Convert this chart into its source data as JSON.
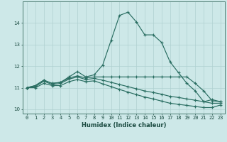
{
  "xlabel": "Humidex (Indice chaleur)",
  "ylabel": "",
  "bg_color": "#cde8e8",
  "line_color": "#2a6e62",
  "grid_color": "#afd0d0",
  "xlim": [
    -0.5,
    23.5
  ],
  "ylim": [
    9.8,
    15.0
  ],
  "yticks": [
    10,
    11,
    12,
    13,
    14
  ],
  "xticks": [
    0,
    1,
    2,
    3,
    4,
    5,
    6,
    7,
    8,
    9,
    10,
    11,
    12,
    13,
    14,
    15,
    16,
    17,
    18,
    19,
    20,
    21,
    22,
    23
  ],
  "series": [
    {
      "x": [
        0,
        1,
        2,
        3,
        4,
        5,
        6,
        7,
        8,
        9,
        10,
        11,
        12,
        13,
        14,
        15,
        16,
        17,
        18,
        19,
        20,
        21,
        22,
        23
      ],
      "y": [
        11.0,
        11.1,
        11.35,
        11.2,
        11.25,
        11.5,
        11.75,
        11.5,
        11.6,
        12.05,
        13.2,
        14.35,
        14.5,
        14.05,
        13.45,
        13.45,
        13.1,
        12.2,
        11.7,
        11.2,
        10.85,
        10.35,
        10.45,
        10.35
      ]
    },
    {
      "x": [
        0,
        1,
        2,
        3,
        4,
        5,
        6,
        7,
        8,
        9,
        10,
        11,
        12,
        13,
        14,
        15,
        16,
        17,
        18,
        19,
        20,
        21,
        22,
        23
      ],
      "y": [
        11.0,
        11.1,
        11.35,
        11.2,
        11.25,
        11.45,
        11.55,
        11.45,
        11.5,
        11.5,
        11.5,
        11.5,
        11.5,
        11.5,
        11.5,
        11.5,
        11.5,
        11.5,
        11.5,
        11.5,
        11.2,
        10.85,
        10.4,
        10.35
      ]
    },
    {
      "x": [
        0,
        1,
        2,
        3,
        4,
        5,
        6,
        7,
        8,
        9,
        10,
        11,
        12,
        13,
        14,
        15,
        16,
        17,
        18,
        19,
        20,
        21,
        22,
        23
      ],
      "y": [
        11.0,
        11.05,
        11.3,
        11.15,
        11.2,
        11.4,
        11.5,
        11.38,
        11.43,
        11.35,
        11.25,
        11.15,
        11.05,
        10.95,
        10.85,
        10.78,
        10.7,
        10.6,
        10.55,
        10.48,
        10.42,
        10.35,
        10.28,
        10.28
      ]
    },
    {
      "x": [
        0,
        1,
        2,
        3,
        4,
        5,
        6,
        7,
        8,
        9,
        10,
        11,
        12,
        13,
        14,
        15,
        16,
        17,
        18,
        19,
        20,
        21,
        22,
        23
      ],
      "y": [
        11.0,
        11.0,
        11.2,
        11.1,
        11.1,
        11.28,
        11.38,
        11.28,
        11.32,
        11.18,
        11.05,
        10.92,
        10.8,
        10.68,
        10.57,
        10.48,
        10.38,
        10.28,
        10.23,
        10.18,
        10.13,
        10.08,
        10.08,
        10.2
      ]
    }
  ]
}
